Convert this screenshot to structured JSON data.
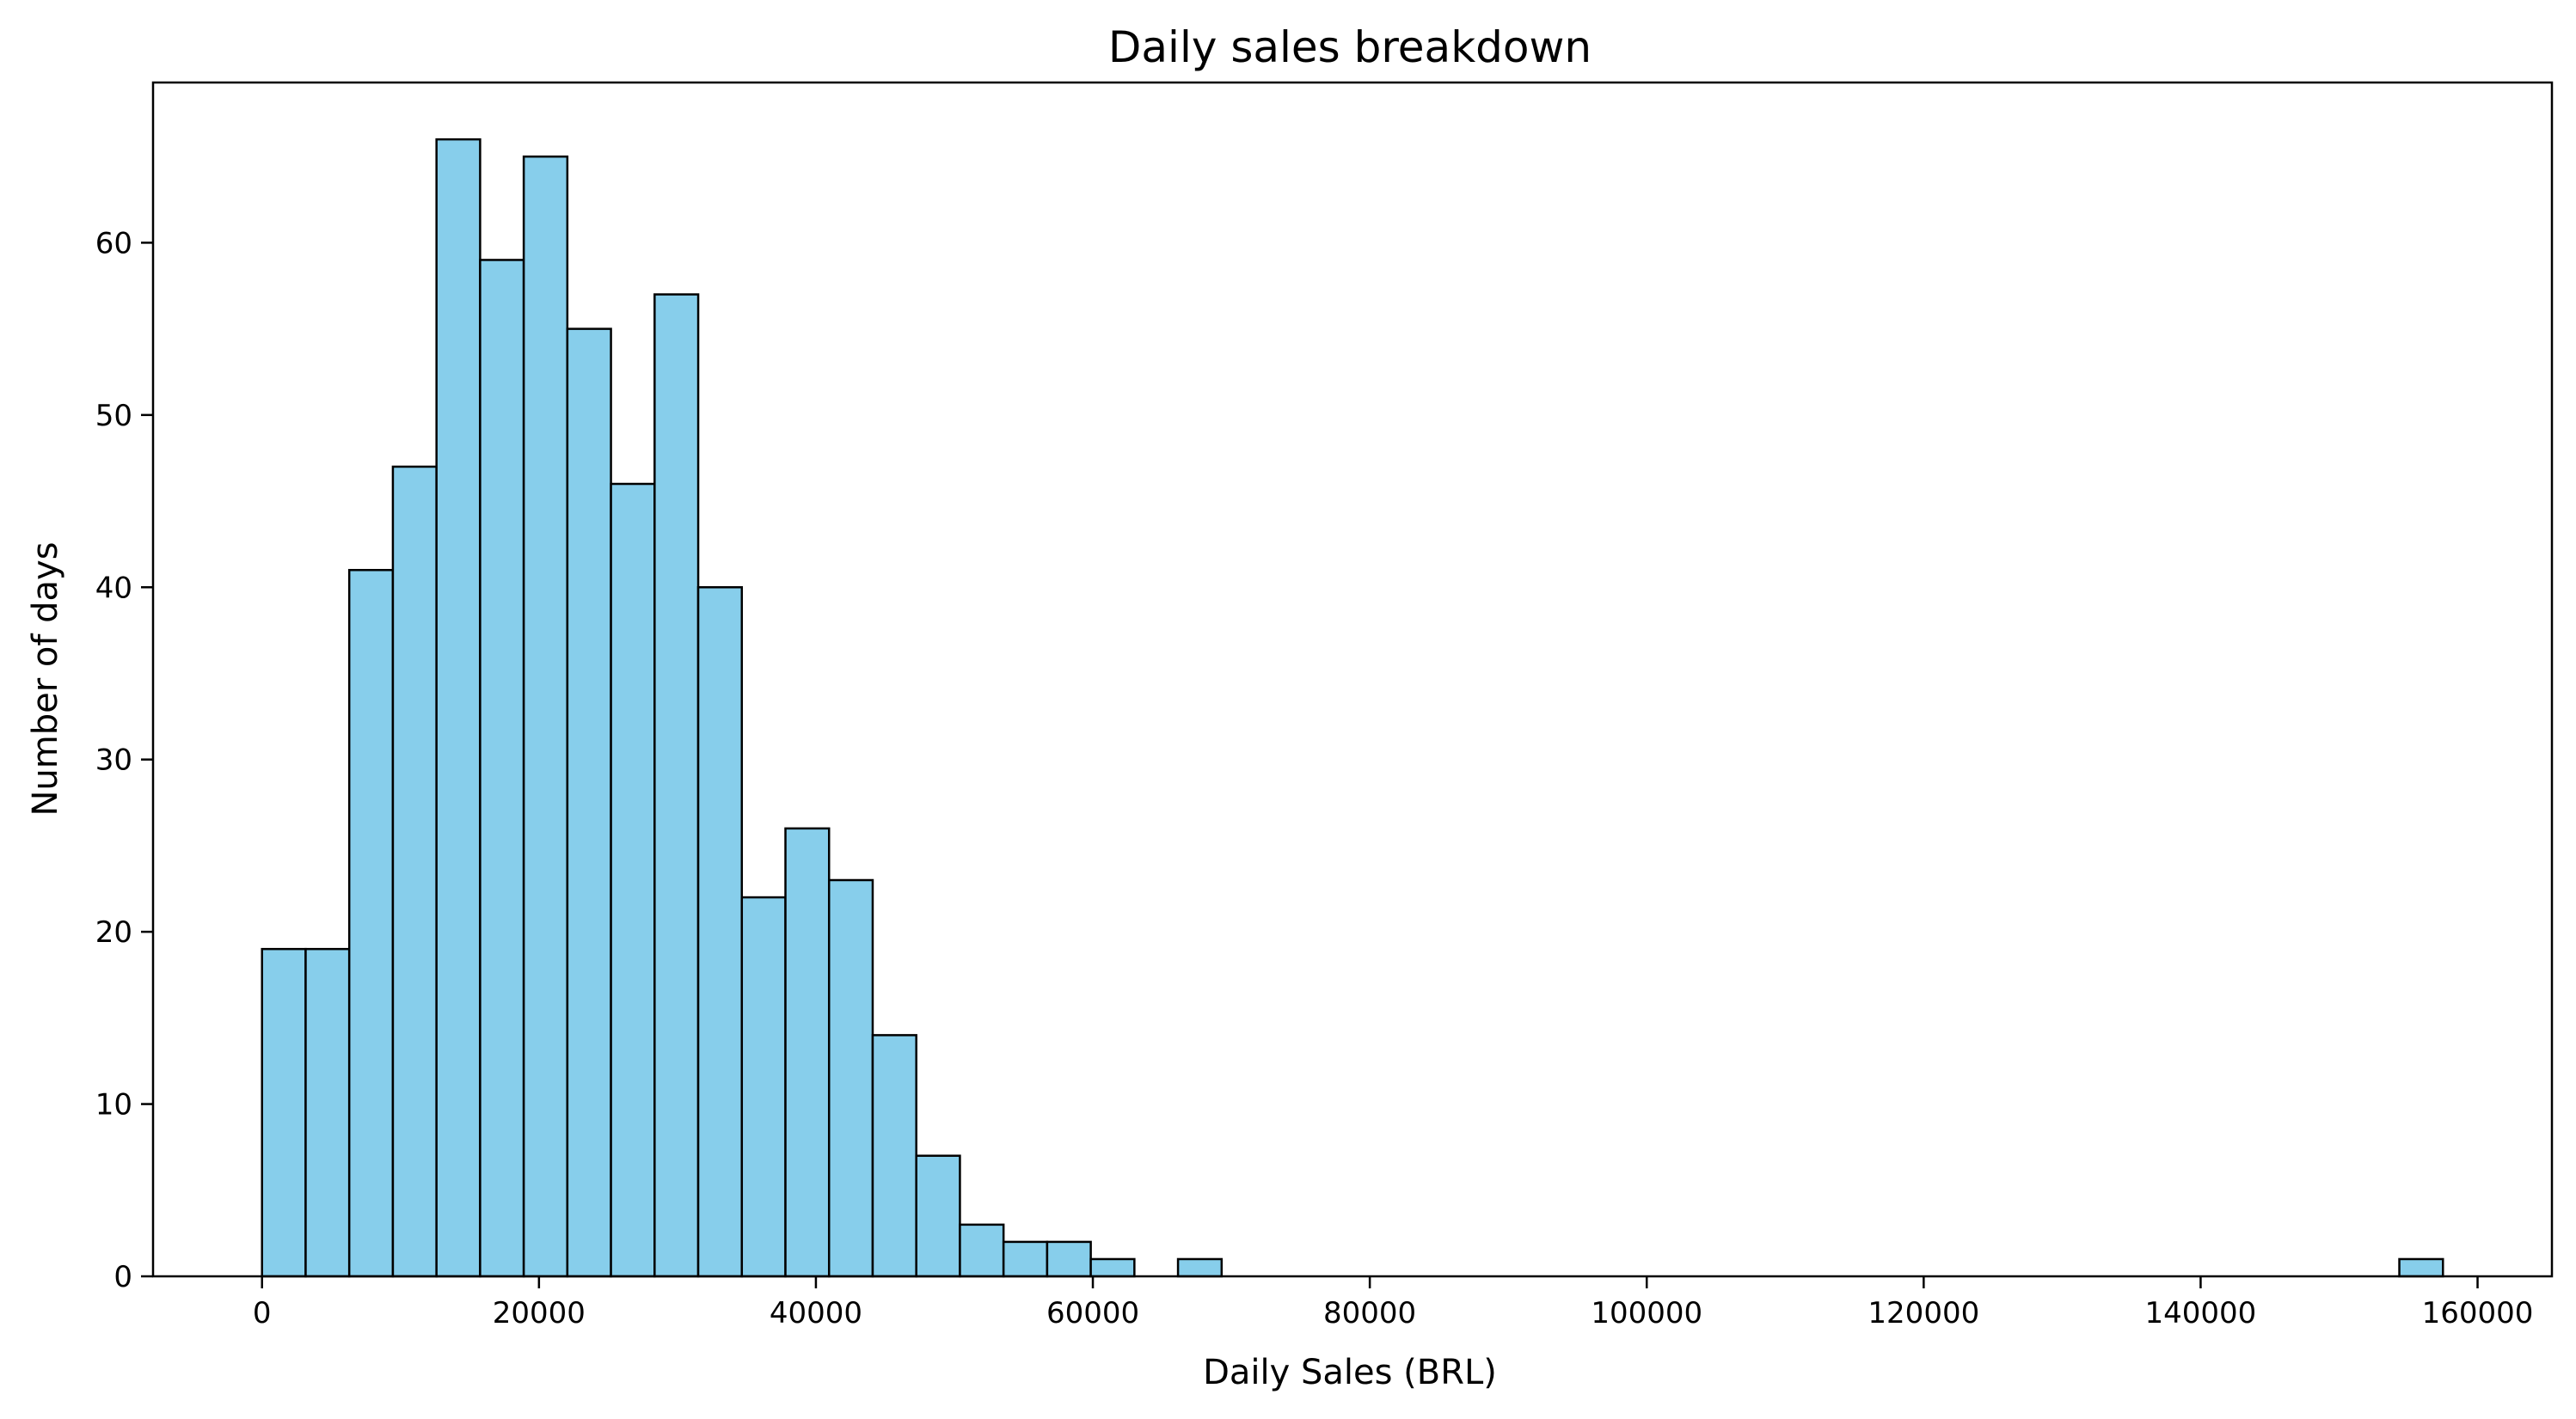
{
  "chart_data": {
    "type": "bar",
    "title": "Daily sales breakdown",
    "xlabel": "Daily Sales (BRL)",
    "ylabel": "Number of days",
    "xlim": [
      -7870,
      165370
    ],
    "ylim": [
      0,
      69.3
    ],
    "xticks": [
      0,
      20000,
      40000,
      60000,
      80000,
      100000,
      120000,
      140000,
      160000
    ],
    "yticks": [
      0,
      10,
      20,
      30,
      40,
      50,
      60
    ],
    "bin_width": 3150,
    "bins": [
      {
        "start": 0,
        "count": 19
      },
      {
        "start": 3150,
        "count": 19
      },
      {
        "start": 6300,
        "count": 41
      },
      {
        "start": 9450,
        "count": 47
      },
      {
        "start": 12600,
        "count": 66
      },
      {
        "start": 15750,
        "count": 59
      },
      {
        "start": 18900,
        "count": 65
      },
      {
        "start": 22050,
        "count": 55
      },
      {
        "start": 25200,
        "count": 46
      },
      {
        "start": 28350,
        "count": 57
      },
      {
        "start": 31500,
        "count": 40
      },
      {
        "start": 34650,
        "count": 22
      },
      {
        "start": 37800,
        "count": 26
      },
      {
        "start": 40950,
        "count": 23
      },
      {
        "start": 44100,
        "count": 14
      },
      {
        "start": 47250,
        "count": 7
      },
      {
        "start": 50400,
        "count": 3
      },
      {
        "start": 53550,
        "count": 2
      },
      {
        "start": 56700,
        "count": 2
      },
      {
        "start": 59850,
        "count": 1
      },
      {
        "start": 66150,
        "count": 1
      },
      {
        "start": 154350,
        "count": 1
      }
    ],
    "bar_color": "#87ceeb",
    "edge_color": "#000000",
    "grid": false
  }
}
